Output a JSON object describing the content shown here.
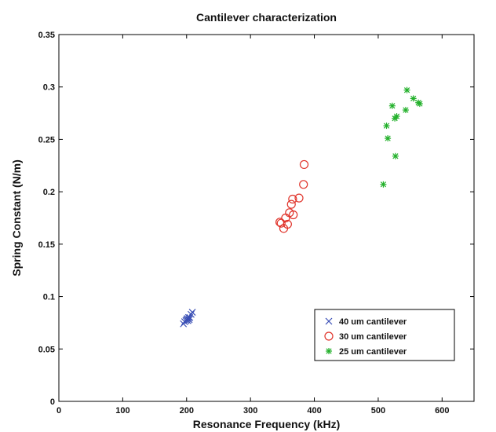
{
  "chart_data": {
    "type": "scatter",
    "title": "Cantilever characterization",
    "xlabel": "Resonance Frequency (kHz)",
    "ylabel": "Spring Constant (N/m)",
    "xlim": [
      0,
      650
    ],
    "ylim": [
      0,
      0.35
    ],
    "xticks": [
      0,
      100,
      200,
      300,
      400,
      500,
      600
    ],
    "yticks": [
      0,
      0.05,
      0.1,
      0.15,
      0.2,
      0.25,
      0.3,
      0.35
    ],
    "xtick_labels": [
      "0",
      "100",
      "200",
      "300",
      "400",
      "500",
      "600"
    ],
    "ytick_labels": [
      "0",
      "0.05",
      "0.1",
      "0.15",
      "0.2",
      "0.25",
      "0.3",
      "0.35"
    ],
    "grid": false,
    "legend_position": "lower-right",
    "series": [
      {
        "name": "40 um cantilever",
        "marker": "x",
        "color": "#3a4fb5",
        "points": [
          [
            195,
            0.074
          ],
          [
            197,
            0.076
          ],
          [
            199,
            0.077
          ],
          [
            200,
            0.078
          ],
          [
            201,
            0.079
          ],
          [
            202,
            0.077
          ],
          [
            203,
            0.08
          ],
          [
            204,
            0.078
          ],
          [
            205,
            0.08
          ],
          [
            207,
            0.083
          ],
          [
            209,
            0.085
          ]
        ]
      },
      {
        "name": "30 um cantilever",
        "marker": "o",
        "color": "#e0332a",
        "points": [
          [
            346,
            0.171
          ],
          [
            348,
            0.17
          ],
          [
            352,
            0.165
          ],
          [
            355,
            0.175
          ],
          [
            358,
            0.169
          ],
          [
            361,
            0.18
          ],
          [
            364,
            0.188
          ],
          [
            366,
            0.193
          ],
          [
            367,
            0.178
          ],
          [
            376,
            0.194
          ],
          [
            383,
            0.207
          ],
          [
            384,
            0.226
          ]
        ]
      },
      {
        "name": "25 um cantilever",
        "marker": "*",
        "color": "#22b02a",
        "points": [
          [
            508,
            0.207
          ],
          [
            513,
            0.263
          ],
          [
            515,
            0.251
          ],
          [
            522,
            0.282
          ],
          [
            526,
            0.27
          ],
          [
            527,
            0.234
          ],
          [
            529,
            0.272
          ],
          [
            543,
            0.278
          ],
          [
            545,
            0.297
          ],
          [
            555,
            0.289
          ],
          [
            563,
            0.285
          ],
          [
            565,
            0.284
          ]
        ]
      }
    ]
  }
}
